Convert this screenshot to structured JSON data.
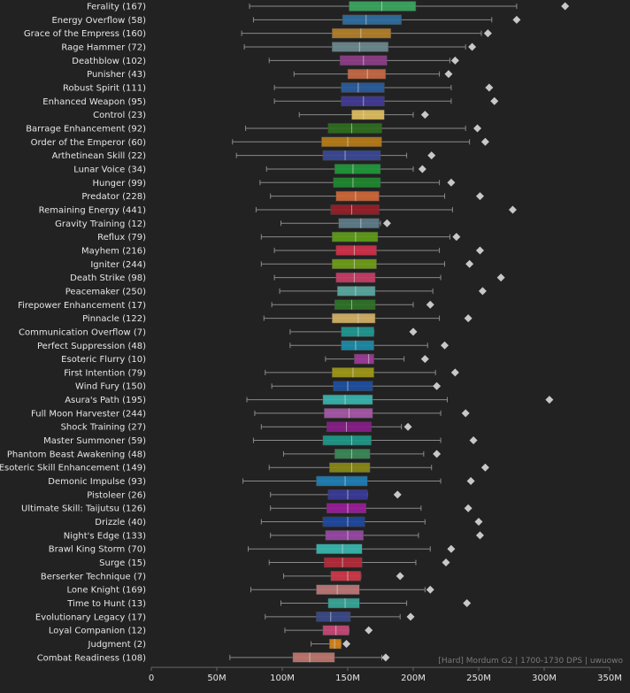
{
  "chart_data": {
    "type": "boxplot",
    "orientation": "horizontal",
    "units": "M",
    "xlim": [
      0,
      350
    ],
    "xticks": [
      0,
      50,
      100,
      150,
      200,
      250,
      300,
      350
    ],
    "xtick_labels": [
      "0",
      "50M",
      "100M",
      "150M",
      "200M",
      "250M",
      "300M",
      "350M"
    ],
    "footnote": "[Hard] Mordum G2 | 1700-1730 DPS | uwuowo",
    "items": [
      {
        "label": "Ferality (167)",
        "min": 75,
        "q1": 151,
        "median": 176,
        "q3": 202,
        "max": 279,
        "outlier": 316,
        "color": "#3aa860"
      },
      {
        "label": "Energy Overflow (58)",
        "min": 78,
        "q1": 146,
        "median": 164,
        "q3": 191,
        "max": 260,
        "outlier": 279,
        "color": "#2e6fa0"
      },
      {
        "label": "Grace of the Empress (160)",
        "min": 69,
        "q1": 138,
        "median": 160,
        "q3": 183,
        "max": 252,
        "outlier": 257,
        "color": "#b5812a"
      },
      {
        "label": "Rage Hammer (72)",
        "min": 71,
        "q1": 138,
        "median": 159,
        "q3": 181,
        "max": 240,
        "outlier": 245,
        "color": "#6d8a8f"
      },
      {
        "label": "Deathblow (102)",
        "min": 90,
        "q1": 144,
        "median": 162,
        "q3": 180,
        "max": 228,
        "outlier": 232,
        "color": "#8f3e8a"
      },
      {
        "label": "Punisher (43)",
        "min": 109,
        "q1": 150,
        "median": 165,
        "q3": 179,
        "max": 220,
        "outlier": 227,
        "color": "#c86a45"
      },
      {
        "label": "Robust Spirit (111)",
        "min": 94,
        "q1": 145,
        "median": 158,
        "q3": 178,
        "max": 229,
        "outlier": 258,
        "color": "#2a5d9e"
      },
      {
        "label": "Enhanced Weapon (95)",
        "min": 94,
        "q1": 145,
        "median": 162,
        "q3": 178,
        "max": 229,
        "outlier": 262,
        "color": "#433a96"
      },
      {
        "label": "Control (23)",
        "min": 113,
        "q1": 153,
        "median": 162,
        "q3": 178,
        "max": 200,
        "outlier": 209,
        "color": "#e0c060"
      },
      {
        "label": "Barrage Enhancement (92)",
        "min": 72,
        "q1": 135,
        "median": 153,
        "q3": 176,
        "max": 240,
        "outlier": 249,
        "color": "#2f6e1f"
      },
      {
        "label": "Order of the Emperor (60)",
        "min": 62,
        "q1": 130,
        "median": 150,
        "q3": 176,
        "max": 243,
        "outlier": 255,
        "color": "#b87d18"
      },
      {
        "label": "Arthetinean Skill (22)",
        "min": 65,
        "q1": 131,
        "median": 148,
        "q3": 175,
        "max": 195,
        "outlier": 214,
        "color": "#3a4a98"
      },
      {
        "label": "Lunar Voice (34)",
        "min": 88,
        "q1": 140,
        "median": 154,
        "q3": 175,
        "max": 200,
        "outlier": 207,
        "color": "#1f9a3a"
      },
      {
        "label": "Hunger (99)",
        "min": 83,
        "q1": 139,
        "median": 154,
        "q3": 175,
        "max": 220,
        "outlier": 229,
        "color": "#1f8a2f"
      },
      {
        "label": "Predator (228)",
        "min": 91,
        "q1": 141,
        "median": 156,
        "q3": 174,
        "max": 224,
        "outlier": 251,
        "color": "#d06838"
      },
      {
        "label": "Remaining Energy (441)",
        "min": 80,
        "q1": 137,
        "median": 153,
        "q3": 174,
        "max": 230,
        "outlier": 276,
        "color": "#9a1e28"
      },
      {
        "label": "Gravity Training (12)",
        "min": 99,
        "q1": 143,
        "median": 160,
        "q3": 174,
        "max": 175,
        "outlier": 180,
        "color": "#5f7e8c"
      },
      {
        "label": "Reflux (79)",
        "min": 84,
        "q1": 138,
        "median": 156,
        "q3": 173,
        "max": 228,
        "outlier": 233,
        "color": "#5e9e18"
      },
      {
        "label": "Mayhem (216)",
        "min": 94,
        "q1": 141,
        "median": 155,
        "q3": 172,
        "max": 220,
        "outlier": 251,
        "color": "#d2304a"
      },
      {
        "label": "Igniter (244)",
        "min": 84,
        "q1": 138,
        "median": 155,
        "q3": 172,
        "max": 224,
        "outlier": 243,
        "color": "#6e9e18"
      },
      {
        "label": "Death Strike (98)",
        "min": 94,
        "q1": 141,
        "median": 155,
        "q3": 171,
        "max": 221,
        "outlier": 267,
        "color": "#c83e68"
      },
      {
        "label": "Peacemaker (250)",
        "min": 98,
        "q1": 142,
        "median": 156,
        "q3": 171,
        "max": 215,
        "outlier": 253,
        "color": "#5aaaa0"
      },
      {
        "label": "Firepower Enhancement (17)",
        "min": 92,
        "q1": 140,
        "median": 153,
        "q3": 171,
        "max": 200,
        "outlier": 213,
        "color": "#2e7428"
      },
      {
        "label": "Pinnacle (122)",
        "min": 86,
        "q1": 138,
        "median": 158,
        "q3": 171,
        "max": 220,
        "outlier": 242,
        "color": "#d6b266"
      },
      {
        "label": "Communication Overflow (7)",
        "min": 106,
        "q1": 145,
        "median": 158,
        "q3": 170,
        "max": 170,
        "outlier": 200,
        "color": "#1e9a92"
      },
      {
        "label": "Perfect Suppression (48)",
        "min": 106,
        "q1": 145,
        "median": 156,
        "q3": 170,
        "max": 211,
        "outlier": 224,
        "color": "#1c8ca8"
      },
      {
        "label": "Esoteric Flurry (10)",
        "min": 133,
        "q1": 155,
        "median": 166,
        "q3": 170,
        "max": 193,
        "outlier": 209,
        "color": "#9e3a9a"
      },
      {
        "label": "First Intention (79)",
        "min": 87,
        "q1": 138,
        "median": 154,
        "q3": 170,
        "max": 217,
        "outlier": 232,
        "color": "#a09a18"
      },
      {
        "label": "Wind Fury (150)",
        "min": 92,
        "q1": 139,
        "median": 150,
        "q3": 169,
        "max": 217,
        "outlier": 218,
        "color": "#1e50a0"
      },
      {
        "label": "Asura's Path (195)",
        "min": 73,
        "q1": 131,
        "median": 148,
        "q3": 169,
        "max": 226,
        "outlier": 304,
        "color": "#38b6b0"
      },
      {
        "label": "Full Moon Harvester (244)",
        "min": 79,
        "q1": 132,
        "median": 151,
        "q3": 169,
        "max": 221,
        "outlier": 240,
        "color": "#a858a8"
      },
      {
        "label": "Shock Training (27)",
        "min": 84,
        "q1": 134,
        "median": 149,
        "q3": 168,
        "max": 191,
        "outlier": 196,
        "color": "#8a1e8a"
      },
      {
        "label": "Master Summoner (59)",
        "min": 78,
        "q1": 131,
        "median": 153,
        "q3": 168,
        "max": 221,
        "outlier": 246,
        "color": "#1e9a8a"
      },
      {
        "label": "Phantom Beast Awakening (48)",
        "min": 101,
        "q1": 140,
        "median": 153,
        "q3": 167,
        "max": 208,
        "outlier": 218,
        "color": "#3a8a58"
      },
      {
        "label": "Esoteric Skill Enhancement (149)",
        "min": 90,
        "q1": 136,
        "median": 153,
        "q3": 167,
        "max": 214,
        "outlier": 255,
        "color": "#8a8a18"
      },
      {
        "label": "Demonic Impulse (93)",
        "min": 70,
        "q1": 126,
        "median": 148,
        "q3": 165,
        "max": 221,
        "outlier": 244,
        "color": "#1e80b8"
      },
      {
        "label": "Pistoleer (26)",
        "min": 91,
        "q1": 135,
        "median": 150,
        "q3": 165,
        "max": 165,
        "outlier": 188,
        "color": "#3a3a9a"
      },
      {
        "label": "Ultimate Skill: Taijutsu (126)",
        "min": 91,
        "q1": 134,
        "median": 150,
        "q3": 164,
        "max": 206,
        "outlier": 242,
        "color": "#9a1e9a"
      },
      {
        "label": "Drizzle (40)",
        "min": 84,
        "q1": 131,
        "median": 150,
        "q3": 163,
        "max": 209,
        "outlier": 250,
        "color": "#1e48a0"
      },
      {
        "label": "Night's Edge (133)",
        "min": 91,
        "q1": 133,
        "median": 150,
        "q3": 162,
        "max": 204,
        "outlier": 251,
        "color": "#9a48a8"
      },
      {
        "label": "Brawl King Storm (70)",
        "min": 74,
        "q1": 126,
        "median": 146,
        "q3": 161,
        "max": 213,
        "outlier": 229,
        "color": "#38b8b0"
      },
      {
        "label": "Surge (15)",
        "min": 90,
        "q1": 132,
        "median": 146,
        "q3": 161,
        "max": 202,
        "outlier": 225,
        "color": "#b82a3a"
      },
      {
        "label": "Berserker Technique (7)",
        "min": 101,
        "q1": 137,
        "median": 150,
        "q3": 160,
        "max": 160,
        "outlier": 190,
        "color": "#d03848"
      },
      {
        "label": "Lone Knight (169)",
        "min": 76,
        "q1": 126,
        "median": 142,
        "q3": 159,
        "max": 209,
        "outlier": 213,
        "color": "#c07878"
      },
      {
        "label": "Time to Hunt (13)",
        "min": 99,
        "q1": 135,
        "median": 148,
        "q3": 159,
        "max": 195,
        "outlier": 241,
        "color": "#38a89a"
      },
      {
        "label": "Evolutionary Legacy (17)",
        "min": 87,
        "q1": 126,
        "median": 137,
        "q3": 152,
        "max": 190,
        "outlier": 198,
        "color": "#3a4a8a"
      },
      {
        "label": "Loyal Companion (12)",
        "min": 102,
        "q1": 131,
        "median": 141,
        "q3": 151,
        "max": 151,
        "outlier": 166,
        "color": "#c84878"
      },
      {
        "label": "Judgment (2)",
        "min": 122,
        "q1": 136,
        "median": 140,
        "q3": 145,
        "max": 145,
        "outlier": 149,
        "color": "#d88418"
      },
      {
        "label": "Combat Readiness (108)",
        "min": 60,
        "q1": 108,
        "median": 121,
        "q3": 140,
        "max": 176,
        "outlier": 179,
        "color": "#c07870"
      }
    ]
  }
}
